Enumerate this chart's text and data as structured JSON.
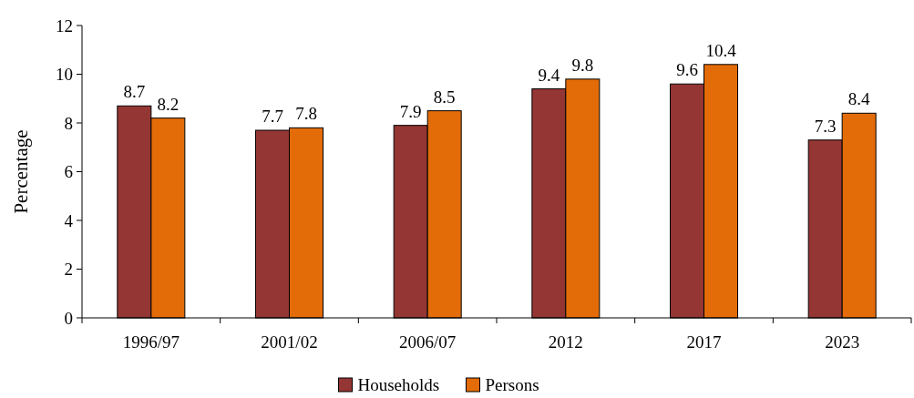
{
  "chart_data": {
    "type": "bar",
    "ylabel": "Percentage",
    "categories": [
      "1996/97",
      "2001/02",
      "2006/07",
      "2012",
      "2017",
      "2023"
    ],
    "series": [
      {
        "name": "Households",
        "color": "#943634",
        "values": [
          8.7,
          7.7,
          7.9,
          9.4,
          9.6,
          7.3
        ]
      },
      {
        "name": "Persons",
        "color": "#e36c09",
        "values": [
          8.2,
          7.8,
          8.5,
          9.8,
          10.4,
          8.4
        ]
      }
    ],
    "ylim": [
      0,
      12
    ],
    "yticks": [
      0,
      2,
      4,
      6,
      8,
      10,
      12
    ],
    "data_labels": true,
    "legend": "bottom",
    "grid": false
  }
}
